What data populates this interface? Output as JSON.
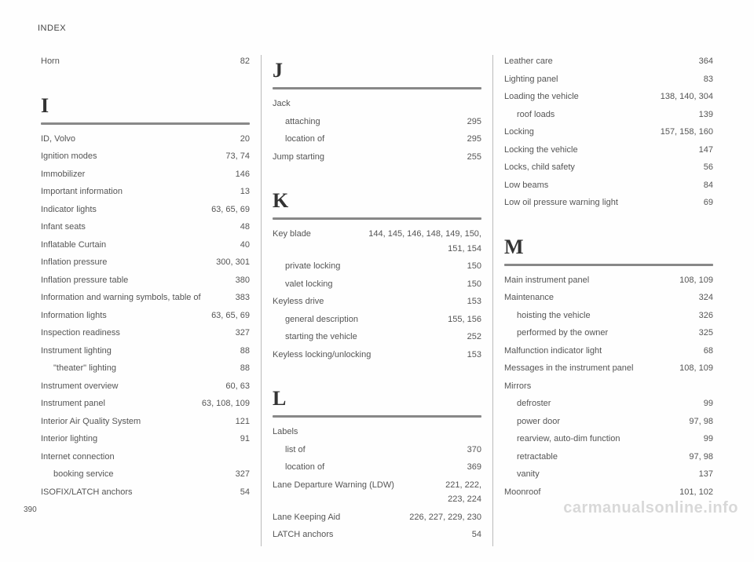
{
  "header": "INDEX",
  "page_number": "390",
  "watermark": "carmanualsonline.info",
  "columns": [
    {
      "blocks": [
        {
          "type": "entry",
          "term": "Horn",
          "pages": "82"
        },
        {
          "type": "letter",
          "text": "I"
        },
        {
          "type": "entry",
          "term": "ID, Volvo",
          "pages": "20"
        },
        {
          "type": "entry",
          "term": "Ignition modes",
          "pages": "73, 74"
        },
        {
          "type": "entry",
          "term": "Immobilizer",
          "pages": "146"
        },
        {
          "type": "entry",
          "term": "Important information",
          "pages": "13"
        },
        {
          "type": "entry",
          "term": "Indicator lights",
          "pages": "63, 65, 69"
        },
        {
          "type": "entry",
          "term": "Infant seats",
          "pages": "48"
        },
        {
          "type": "entry",
          "term": "Inflatable Curtain",
          "pages": "40"
        },
        {
          "type": "entry",
          "term": "Inflation pressure",
          "pages": "300, 301"
        },
        {
          "type": "entry",
          "term": "Inflation pressure table",
          "pages": "380"
        },
        {
          "type": "entry",
          "term": "Information and warning symbols, table of",
          "pages": "383"
        },
        {
          "type": "entry",
          "term": "Information lights",
          "pages": "63, 65, 69"
        },
        {
          "type": "entry",
          "term": "Inspection readiness",
          "pages": "327"
        },
        {
          "type": "entry",
          "term": "Instrument lighting",
          "pages": "88"
        },
        {
          "type": "sub",
          "term": "\"theater\" lighting",
          "pages": "88"
        },
        {
          "type": "entry",
          "term": "Instrument overview",
          "pages": "60, 63"
        },
        {
          "type": "entry",
          "term": "Instrument panel",
          "pages": "63, 108, 109"
        },
        {
          "type": "entry",
          "term": "Interior Air Quality System",
          "pages": "121"
        },
        {
          "type": "entry",
          "term": "Interior lighting",
          "pages": "91"
        },
        {
          "type": "entry",
          "term": "Internet connection",
          "pages": ""
        },
        {
          "type": "sub",
          "term": "booking service",
          "pages": "327"
        },
        {
          "type": "entry",
          "term": "ISOFIX/LATCH anchors",
          "pages": "54"
        }
      ]
    },
    {
      "blocks": [
        {
          "type": "letter",
          "text": "J"
        },
        {
          "type": "entry",
          "term": "Jack",
          "pages": ""
        },
        {
          "type": "sub",
          "term": "attaching",
          "pages": "295"
        },
        {
          "type": "sub",
          "term": "location of",
          "pages": "295"
        },
        {
          "type": "entry",
          "term": "Jump starting",
          "pages": "255"
        },
        {
          "type": "letter",
          "text": "K"
        },
        {
          "type": "entry",
          "term": "Key blade",
          "pages": "144, 145, 146, 148, 149, 150,"
        },
        {
          "type": "wrap",
          "pages": "151, 154"
        },
        {
          "type": "sub",
          "term": "private locking",
          "pages": "150"
        },
        {
          "type": "sub",
          "term": "valet locking",
          "pages": "150"
        },
        {
          "type": "entry",
          "term": "Keyless drive",
          "pages": "153"
        },
        {
          "type": "sub",
          "term": "general description",
          "pages": "155, 156"
        },
        {
          "type": "sub",
          "term": "starting the vehicle",
          "pages": "252"
        },
        {
          "type": "entry",
          "term": "Keyless locking/unlocking",
          "pages": "153"
        },
        {
          "type": "letter",
          "text": "L"
        },
        {
          "type": "entry",
          "term": "Labels",
          "pages": ""
        },
        {
          "type": "sub",
          "term": "list of",
          "pages": "370"
        },
        {
          "type": "sub",
          "term": "location of",
          "pages": "369"
        },
        {
          "type": "entry",
          "term": "Lane Departure Warning (LDW)",
          "pages": "221, 222,"
        },
        {
          "type": "wrap",
          "pages": "223, 224"
        },
        {
          "type": "entry",
          "term": "Lane Keeping Aid",
          "pages": "226, 227, 229, 230"
        },
        {
          "type": "entry",
          "term": "LATCH anchors",
          "pages": "54"
        }
      ]
    },
    {
      "blocks": [
        {
          "type": "entry",
          "term": "Leather care",
          "pages": "364"
        },
        {
          "type": "entry",
          "term": "Lighting panel",
          "pages": "83"
        },
        {
          "type": "entry",
          "term": "Loading the vehicle",
          "pages": "138, 140, 304"
        },
        {
          "type": "sub",
          "term": "roof loads",
          "pages": "139"
        },
        {
          "type": "entry",
          "term": "Locking",
          "pages": "157, 158, 160"
        },
        {
          "type": "entry",
          "term": "Locking the vehicle",
          "pages": "147"
        },
        {
          "type": "entry",
          "term": "Locks, child safety",
          "pages": "56"
        },
        {
          "type": "entry",
          "term": "Low beams",
          "pages": "84"
        },
        {
          "type": "entry",
          "term": "Low oil pressure warning light",
          "pages": "69"
        },
        {
          "type": "letter",
          "text": "M"
        },
        {
          "type": "entry",
          "term": "Main instrument panel",
          "pages": "108, 109"
        },
        {
          "type": "entry",
          "term": "Maintenance",
          "pages": "324"
        },
        {
          "type": "sub",
          "term": "hoisting the vehicle",
          "pages": "326"
        },
        {
          "type": "sub",
          "term": "performed by the owner",
          "pages": "325"
        },
        {
          "type": "entry",
          "term": "Malfunction indicator light",
          "pages": "68"
        },
        {
          "type": "entry",
          "term": "Messages in the instrument panel",
          "pages": "108, 109"
        },
        {
          "type": "entry",
          "term": "Mirrors",
          "pages": ""
        },
        {
          "type": "sub",
          "term": "defroster",
          "pages": "99"
        },
        {
          "type": "sub",
          "term": "power door",
          "pages": "97, 98"
        },
        {
          "type": "sub",
          "term": "rearview, auto-dim function",
          "pages": "99"
        },
        {
          "type": "sub",
          "term": "retractable",
          "pages": "97, 98"
        },
        {
          "type": "sub",
          "term": "vanity",
          "pages": "137"
        },
        {
          "type": "entry",
          "term": "Moonroof",
          "pages": "101, 102"
        }
      ]
    }
  ]
}
